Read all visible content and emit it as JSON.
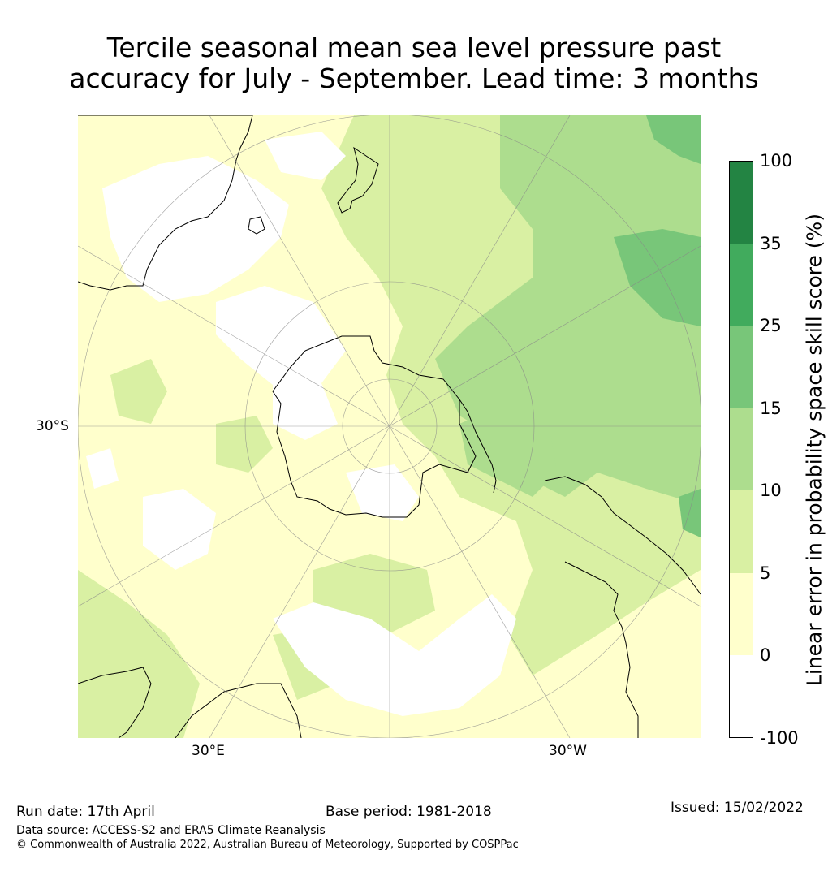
{
  "title_line1": "Tercile seasonal mean sea level pressure past",
  "title_line2": "accuracy for July - September. Lead time: 3 months",
  "map": {
    "projection": "south-polar-stereographic",
    "lat_labels": [
      "30°S"
    ],
    "lon_labels": [
      "30°E",
      "30°W"
    ]
  },
  "colorbar": {
    "label": "Linear error in probability space skill score (%)",
    "ticks": [
      "100",
      "35",
      "25",
      "15",
      "10",
      "5",
      "0",
      "-100"
    ],
    "colors": [
      "#ffffff",
      "#ffffcc",
      "#d9f0a3",
      "#addd8e",
      "#78c679",
      "#41ab5d",
      "#238443"
    ]
  },
  "footer": {
    "run_date": "Run date: 17th April",
    "base_period": "Base period: 1981-2018",
    "issued": "Issued: 15/02/2022",
    "data_source": "Data source: ACCESS-S2 and ERA5 Climate Reanalysis",
    "copyright": "© Commonwealth of Australia 2022, Australian Bureau of Meteorology, Supported by COSPPac"
  }
}
